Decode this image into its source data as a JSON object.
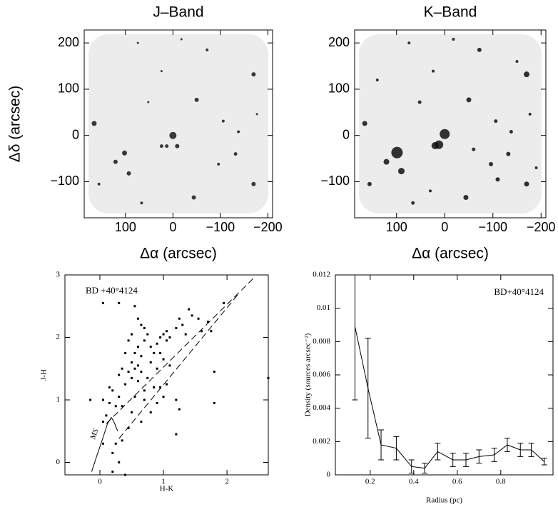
{
  "chart_data": [
    {
      "type": "scatter",
      "title": "J–Band",
      "xlabel": "Δα (arcsec)",
      "ylabel": "Δδ (arcsec)",
      "xlim": [
        187,
        -210
      ],
      "ylim": [
        -178,
        228
      ],
      "xticks": [
        100,
        0,
        {
          "value": -100,
          "label": "−100"
        },
        {
          "value": -200,
          "label": "−200"
        }
      ],
      "yticks": [
        {
          "value": -100,
          "label": "−100"
        },
        0,
        100,
        200
      ],
      "field_color": "#ececec",
      "color": "#1a1a1a",
      "x": [
        0,
        13,
        24,
        -9,
        -50,
        102,
        93,
        121,
        166,
        -170,
        -170,
        -132,
        -44,
        -72,
        52,
        -106,
        -138,
        74,
        24,
        156,
        -96,
        -177,
        -18,
        66
      ],
      "y": [
        0,
        -23,
        -23,
        -23,
        77,
        -38,
        -82,
        -57,
        26,
        132,
        -105,
        -40,
        -134,
        185,
        72,
        31,
        8,
        200,
        139,
        -105,
        -62,
        46,
        208,
        -146
      ],
      "size": [
        5,
        2.5,
        2.5,
        3,
        3,
        3.5,
        3,
        3,
        3.5,
        3,
        3,
        2.5,
        3,
        2,
        1.5,
        2,
        2,
        1.5,
        1.5,
        2,
        2,
        1.5,
        1.5,
        2
      ]
    },
    {
      "type": "scatter",
      "title": "K–Band",
      "xlabel": "Δα (arcsec)",
      "xlim": [
        187,
        -210
      ],
      "ylim": [
        -178,
        228
      ],
      "xticks": [
        100,
        0,
        {
          "value": -100,
          "label": "−100"
        },
        {
          "value": -200,
          "label": "−200"
        }
      ],
      "yticks": [
        {
          "value": -100,
          "label": "−100"
        },
        0,
        100,
        200
      ],
      "field_color": "#ececec",
      "color": "#111111",
      "x": [
        0,
        12,
        20,
        99,
        90,
        -50,
        121,
        166,
        -170,
        -170,
        -132,
        -44,
        -72,
        52,
        -106,
        -138,
        74,
        24,
        156,
        -96,
        -177,
        -18,
        66,
        -110,
        -150,
        140,
        -60,
        30,
        -190
      ],
      "y": [
        3,
        -20,
        -22,
        -37,
        -77,
        77,
        -57,
        26,
        132,
        -105,
        -40,
        -134,
        185,
        72,
        31,
        8,
        200,
        139,
        -105,
        -62,
        46,
        208,
        -146,
        -95,
        160,
        120,
        -30,
        -120,
        -70
      ],
      "size": [
        7,
        6,
        5,
        8,
        4.5,
        3.5,
        4,
        3.5,
        4,
        3.5,
        3,
        3.5,
        3,
        2.5,
        2.5,
        2.5,
        2,
        2,
        3,
        3,
        2,
        2,
        2.5,
        3,
        2,
        2,
        2.5,
        2,
        2
      ]
    },
    {
      "type": "scatter",
      "annotation": "BD +40°4124",
      "curve_label": "MS",
      "xlabel": "H-K",
      "ylabel": "J-H",
      "xlim": [
        -0.55,
        2.65
      ],
      "ylim": [
        -0.2,
        3
      ],
      "xticks": [
        0,
        1,
        2
      ],
      "yticks": [
        0,
        1,
        2,
        3
      ],
      "color": "#000000",
      "x": [
        0.05,
        0.3,
        0.55,
        0.6,
        0.5,
        0.45,
        0.65,
        0.7,
        0.7,
        0.75,
        0.8,
        0.6,
        0.55,
        0.4,
        0.35,
        0.3,
        0.45,
        0.5,
        0.55,
        0.6,
        0.65,
        0.8,
        0.85,
        0.9,
        0.95,
        1.0,
        1.05,
        1.1,
        1.2,
        1.25,
        1.3,
        1.35,
        1.4,
        1.45,
        1.55,
        1.6,
        1.7,
        1.75,
        1.8,
        1.8,
        1.95,
        2.65,
        1.05,
        0.95,
        1.0,
        0.9,
        1.1,
        1.2,
        1.25,
        0.6,
        0.5,
        0.4,
        0.3,
        0.2,
        0.15,
        0.15,
        0.25,
        0.05,
        0.1,
        0.05,
        -0.15,
        0.35,
        0.5,
        0.55,
        0.7,
        0.8,
        0.9,
        0.95,
        1.05,
        0.75,
        0.65,
        0.45,
        0.35,
        0.25,
        0.2,
        0.05,
        0.3,
        0.4,
        0.2,
        1.2,
        0.7,
        0.85,
        1.0,
        0.65
      ],
      "y": [
        2.55,
        2.55,
        2.5,
        2.3,
        2.05,
        1.95,
        2.2,
        2.15,
        1.95,
        2.05,
        1.85,
        1.85,
        1.75,
        1.75,
        1.5,
        1.4,
        1.45,
        1.6,
        1.5,
        1.55,
        1.7,
        1.6,
        1.75,
        1.9,
        2.0,
        2.05,
        2.1,
        2.0,
        2.15,
        2.3,
        2.2,
        2.05,
        2.45,
        2.35,
        2.3,
        2.1,
        2.25,
        2.1,
        1.45,
        0.95,
        2.55,
        1.35,
        1.95,
        1.75,
        1.65,
        1.5,
        1.55,
        1.0,
        0.85,
        1.3,
        1.35,
        1.25,
        1.05,
        1.15,
        1.2,
        0.95,
        0.9,
        1.0,
        0.75,
        0.65,
        1.0,
        0.9,
        0.8,
        1.05,
        1.0,
        0.8,
        0.95,
        1.2,
        1.25,
        1.35,
        0.65,
        0.55,
        0.35,
        0.3,
        0.15,
        0.3,
        0.0,
        -0.2,
        -0.15,
        0.45,
        1.15,
        1.2,
        1.05,
        1.45
      ],
      "lines": [
        {
          "style": "solid",
          "x": [
            -0.13,
            -0.05,
            0.05,
            0.12,
            0.18,
            0.22,
            0.28
          ],
          "y": [
            -0.15,
            0.1,
            0.4,
            0.62,
            0.72,
            0.65,
            0.5
          ]
        },
        {
          "style": "dashed",
          "x": [
            0.1,
            2.45
          ],
          "y": [
            0.62,
            2.98
          ]
        },
        {
          "style": "dashed",
          "x": [
            0.3,
            2.2
          ],
          "y": [
            0.38,
            2.72
          ]
        }
      ]
    },
    {
      "type": "line",
      "annotation": "BD+40°4124",
      "xlabel": "Radius (pc)",
      "ylabel": "Density (sources arcsec⁻²)",
      "xlim": [
        0.04,
        1.04
      ],
      "ylim": [
        0,
        0.012
      ],
      "xticks": [
        0.2,
        0.4,
        0.6,
        0.8
      ],
      "yticks": [
        0,
        0.002,
        0.004,
        0.006,
        0.008,
        0.01,
        0.012
      ],
      "color": "#000000",
      "x": [
        0.13,
        0.19,
        0.25,
        0.32,
        0.39,
        0.45,
        0.51,
        0.58,
        0.64,
        0.7,
        0.77,
        0.83,
        0.89,
        0.94,
        1.0
      ],
      "values": [
        0.0089,
        0.0052,
        0.0018,
        0.0016,
        0.0005,
        0.0004,
        0.0014,
        0.0009,
        0.0009,
        0.0011,
        0.0012,
        0.0018,
        0.0015,
        0.0015,
        0.0008
      ],
      "errors": [
        0.0044,
        0.003,
        0.0009,
        0.0007,
        0.0004,
        0.0003,
        0.0005,
        0.0004,
        0.0004,
        0.0004,
        0.0004,
        0.0004,
        0.0004,
        0.0004,
        0.0002
      ]
    }
  ]
}
